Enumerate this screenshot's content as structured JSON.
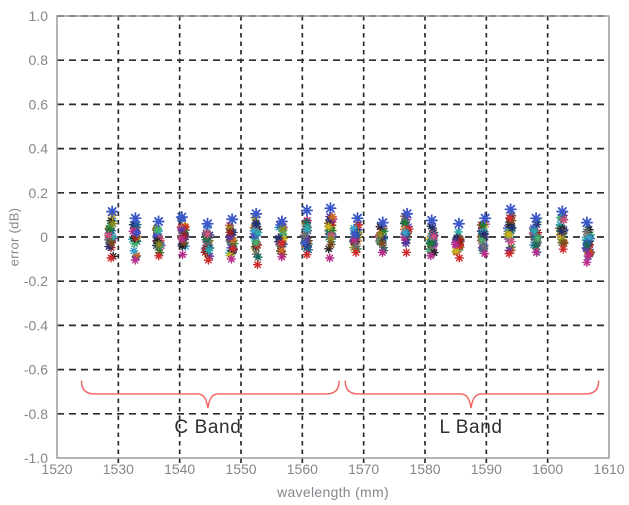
{
  "colors": {
    "background": "#ffffff",
    "frame": "#9b9b9b",
    "grid": "#2b2b2b",
    "tick_label": "#85878c",
    "axis_label": "#85878c",
    "band_label": "#2f2f2f",
    "brace": "#f15f5f",
    "highlight_marker": "#3a56c8",
    "marker_palette": [
      "#222222",
      "#c9b51e",
      "#cf2b2b",
      "#b92d8c",
      "#3a56c8",
      "#29a8a8",
      "#237a33",
      "#8a8a1e",
      "#d06a22",
      "#5b3aa6",
      "#1d5e96",
      "#6e6e6e",
      "#46b06a",
      "#d0507e",
      "#7a4a1e",
      "#22306e",
      "#9a1f1f",
      "#3aa0c9",
      "#196a5a",
      "#2a2a6e"
    ]
  },
  "chart_data": {
    "type": "scatter",
    "title": "",
    "xlabel": "wavelength (mm)",
    "ylabel": "error (dB)",
    "xlim": [
      1520,
      1610
    ],
    "ylim": [
      -1.0,
      1.0
    ],
    "grid": "dashed-both",
    "legend": "none",
    "marker": "asterisk",
    "points_per_cluster": 24,
    "x_ticks": [
      1520,
      1530,
      1540,
      1550,
      1560,
      1570,
      1580,
      1590,
      1600,
      1610
    ],
    "y_ticks": [
      {
        "v": 1.0,
        "label": "1.0"
      },
      {
        "v": 0.8,
        "label": "0.8"
      },
      {
        "v": 0.6,
        "label": "0.6"
      },
      {
        "v": 0.4,
        "label": "0.4"
      },
      {
        "v": 0.2,
        "label": "0.2"
      },
      {
        "v": 0.0,
        "label": "0"
      },
      {
        "v": -0.2,
        "label": "-0.2"
      },
      {
        "v": -0.4,
        "label": "-0.4"
      },
      {
        "v": -0.6,
        "label": "-0.6"
      },
      {
        "v": -0.8,
        "label": "-0.8"
      },
      {
        "v": -1.0,
        "label": "-1.0"
      }
    ],
    "clusters": [
      {
        "wl": 1528.77,
        "min": -0.095,
        "max": 0.115
      },
      {
        "wl": 1532.68,
        "min": -0.105,
        "max": 0.085
      },
      {
        "wl": 1536.61,
        "min": -0.085,
        "max": 0.07
      },
      {
        "wl": 1540.56,
        "min": -0.08,
        "max": 0.09
      },
      {
        "wl": 1544.53,
        "min": -0.105,
        "max": 0.06
      },
      {
        "wl": 1548.51,
        "min": -0.1,
        "max": 0.08
      },
      {
        "wl": 1552.52,
        "min": -0.125,
        "max": 0.105
      },
      {
        "wl": 1556.55,
        "min": -0.09,
        "max": 0.07
      },
      {
        "wl": 1560.61,
        "min": -0.08,
        "max": 0.12
      },
      {
        "wl": 1564.68,
        "min": -0.095,
        "max": 0.13
      },
      {
        "wl": 1568.77,
        "min": -0.07,
        "max": 0.085
      },
      {
        "wl": 1572.89,
        "min": -0.07,
        "max": 0.065
      },
      {
        "wl": 1577.03,
        "min": -0.07,
        "max": 0.105
      },
      {
        "wl": 1581.18,
        "min": -0.085,
        "max": 0.075
      },
      {
        "wl": 1585.36,
        "min": -0.095,
        "max": 0.06
      },
      {
        "wl": 1589.57,
        "min": -0.075,
        "max": 0.085
      },
      {
        "wl": 1593.79,
        "min": -0.075,
        "max": 0.125
      },
      {
        "wl": 1598.04,
        "min": -0.07,
        "max": 0.085
      },
      {
        "wl": 1602.31,
        "min": -0.055,
        "max": 0.115
      },
      {
        "wl": 1606.6,
        "min": -0.115,
        "max": 0.065
      }
    ],
    "annotations": [
      {
        "label": "C Band",
        "x_start": 1524.0,
        "x_end": 1566.0,
        "x_tip": 1544.6,
        "y_ends": -0.652,
        "y_body": -0.71,
        "y_tip": -0.774,
        "label_y": -0.865
      },
      {
        "label": "L Band",
        "x_start": 1567.0,
        "x_end": 1608.3,
        "x_tip": 1587.5,
        "y_ends": -0.652,
        "y_body": -0.71,
        "y_tip": -0.774,
        "label_y": -0.865
      }
    ]
  }
}
